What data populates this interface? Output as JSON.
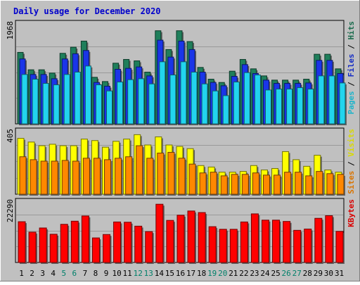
{
  "chart_data": [
    {
      "type": "bar",
      "title": "Daily usage for December 2020",
      "ymax_label": "1968",
      "ylim": [
        0,
        2200
      ],
      "legend_right": [
        "Pages",
        "Files",
        "Hits"
      ],
      "categories": [
        "1",
        "2",
        "3",
        "4",
        "5",
        "6",
        "7",
        "8",
        "9",
        "10",
        "11",
        "12",
        "13",
        "14",
        "15",
        "16",
        "17",
        "18",
        "19",
        "20",
        "21",
        "22",
        "23",
        "24",
        "25",
        "26",
        "27",
        "28",
        "29",
        "30",
        "31"
      ],
      "weekend_days": [
        "5",
        "6",
        "12",
        "13",
        "19",
        "20",
        "26",
        "27"
      ],
      "series": [
        {
          "name": "Hits",
          "color": "#1f7f5b",
          "values": [
            1520,
            1150,
            1150,
            1080,
            1500,
            1630,
            1760,
            990,
            900,
            1290,
            1370,
            1340,
            1100,
            1980,
            1580,
            1980,
            1750,
            1200,
            950,
            880,
            1120,
            1370,
            1170,
            1020,
            930,
            930,
            930,
            950,
            1480,
            1480,
            1170
          ]
        },
        {
          "name": "Files",
          "color": "#1a35e8",
          "values": [
            1380,
            1050,
            1050,
            960,
            1380,
            1490,
            1560,
            880,
            800,
            1160,
            1180,
            1210,
            1020,
            1780,
            1420,
            1760,
            1580,
            1100,
            880,
            810,
            1010,
            1260,
            1070,
            930,
            860,
            860,
            860,
            870,
            1350,
            1350,
            1070
          ]
        },
        {
          "name": "Pages",
          "color": "#22d4ee",
          "values": [
            1050,
            950,
            860,
            830,
            1050,
            1100,
            1230,
            830,
            700,
            890,
            940,
            960,
            850,
            1320,
            1040,
            1320,
            1100,
            850,
            700,
            600,
            890,
            1090,
            1040,
            720,
            740,
            740,
            770,
            740,
            1020,
            1020,
            870
          ]
        }
      ]
    },
    {
      "type": "bar",
      "ymax_label": "405",
      "ylim": [
        0,
        450
      ],
      "legend_right": [
        "Sites",
        "Visits"
      ],
      "categories": [
        "1",
        "2",
        "3",
        "4",
        "5",
        "6",
        "7",
        "8",
        "9",
        "10",
        "11",
        "12",
        "13",
        "14",
        "15",
        "16",
        "17",
        "18",
        "19",
        "20",
        "21",
        "22",
        "23",
        "24",
        "25",
        "26",
        "27",
        "28",
        "29",
        "30",
        "31"
      ],
      "series": [
        {
          "name": "Visits",
          "color": "#ffff00",
          "values": [
            380,
            355,
            330,
            340,
            330,
            330,
            375,
            365,
            320,
            360,
            375,
            405,
            335,
            390,
            335,
            325,
            310,
            195,
            185,
            150,
            150,
            155,
            195,
            165,
            175,
            290,
            235,
            190,
            265,
            165,
            150
          ]
        },
        {
          "name": "Sites",
          "color": "#ff8800",
          "values": [
            255,
            235,
            225,
            225,
            230,
            225,
            245,
            245,
            235,
            245,
            255,
            330,
            245,
            280,
            285,
            245,
            205,
            145,
            150,
            125,
            135,
            135,
            145,
            130,
            130,
            150,
            150,
            125,
            155,
            140,
            135
          ]
        }
      ]
    },
    {
      "type": "bar",
      "ymax_label": "22290",
      "ylim": [
        0,
        24500
      ],
      "legend_right": [
        "KBytes"
      ],
      "categories": [
        "1",
        "2",
        "3",
        "4",
        "5",
        "6",
        "7",
        "8",
        "9",
        "10",
        "11",
        "12",
        "13",
        "14",
        "15",
        "16",
        "17",
        "18",
        "19",
        "20",
        "21",
        "22",
        "23",
        "24",
        "25",
        "26",
        "27",
        "28",
        "29",
        "30",
        "31"
      ],
      "series": [
        {
          "name": "KBytes",
          "color": "#ff0000",
          "values": [
            15600,
            11600,
            13200,
            10800,
            14600,
            15800,
            17800,
            9400,
            10700,
            15500,
            15400,
            13900,
            11800,
            22290,
            16100,
            18100,
            19700,
            19100,
            13700,
            12700,
            12700,
            15500,
            18600,
            16200,
            16200,
            15700,
            12300,
            12800,
            16900,
            17900,
            11900
          ]
        }
      ]
    }
  ]
}
